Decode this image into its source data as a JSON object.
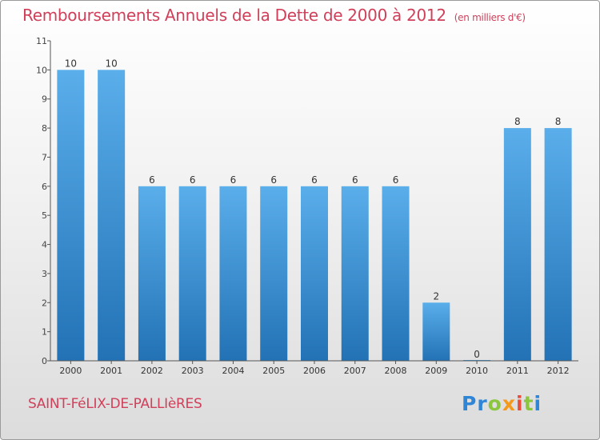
{
  "header": {
    "title": "Remboursements Annuels de la Dette de 2000 à 2012",
    "subtitle": "(en milliers d'€)"
  },
  "footer": {
    "commune": "SAINT-FéLIX-DE-PALLIèRES",
    "logo_text": "Proxiti"
  },
  "colors": {
    "title": "#d0405a",
    "bar_light": "#5aaeea",
    "bar_dark": "#2272b5",
    "logo": [
      "#2f86d6",
      "#8cc63e",
      "#f39a1e",
      "#e94d3c"
    ]
  },
  "chart_data": {
    "type": "bar",
    "title": "Remboursements Annuels de la Dette de 2000 à 2012",
    "subtitle": "(en milliers d'€)",
    "categories": [
      "2000",
      "2001",
      "2002",
      "2003",
      "2004",
      "2005",
      "2006",
      "2007",
      "2008",
      "2009",
      "2010",
      "2011",
      "2012"
    ],
    "values": [
      10,
      10,
      6,
      6,
      6,
      6,
      6,
      6,
      6,
      2,
      0,
      8,
      8
    ],
    "data_labels": [
      "10",
      "10",
      "6",
      "6",
      "6",
      "6",
      "6",
      "6",
      "6",
      "2",
      "0",
      "8",
      "8"
    ],
    "y_ticks": [
      "0",
      "1",
      "2",
      "3",
      "4",
      "5",
      "6",
      "7",
      "8",
      "9",
      "10",
      "11"
    ],
    "ylim": [
      0,
      11
    ],
    "xlabel": "",
    "ylabel": "",
    "grid": false,
    "legend": "none"
  }
}
